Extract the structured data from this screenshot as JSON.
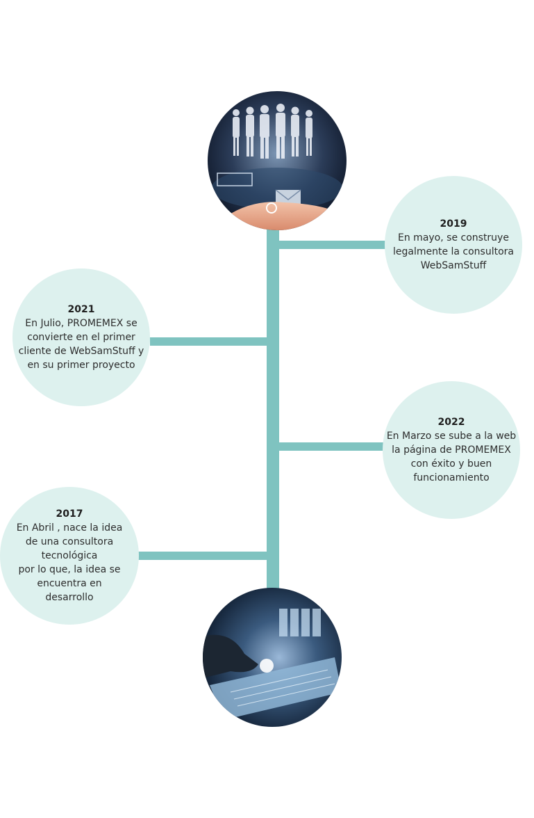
{
  "colors": {
    "connector": "#7fc3c0",
    "bubble": "#ddf1ee",
    "text": "#2c2c2c"
  },
  "images": {
    "top": "business-people-network-image",
    "bottom": "tablet-interface-image"
  },
  "events": [
    {
      "year": "2019",
      "text": "En mayo, se construye\nlegalmente la consultora\nWebSamStuff"
    },
    {
      "year": "2021",
      "text": "En Julio, PROMEMEX se\nconvierte en el primer\ncliente de WebSamStuff y\nen su primer proyecto"
    },
    {
      "year": "2022",
      "text": "En Marzo se sube a la web\nla página de PROMEMEX\ncon éxito y buen\nfuncionamiento"
    },
    {
      "year": "2017",
      "text": "En Abril , nace la idea\nde una consultora\ntecnológica\npor lo que, la idea se\nencuentra en\ndesarrollo"
    }
  ]
}
